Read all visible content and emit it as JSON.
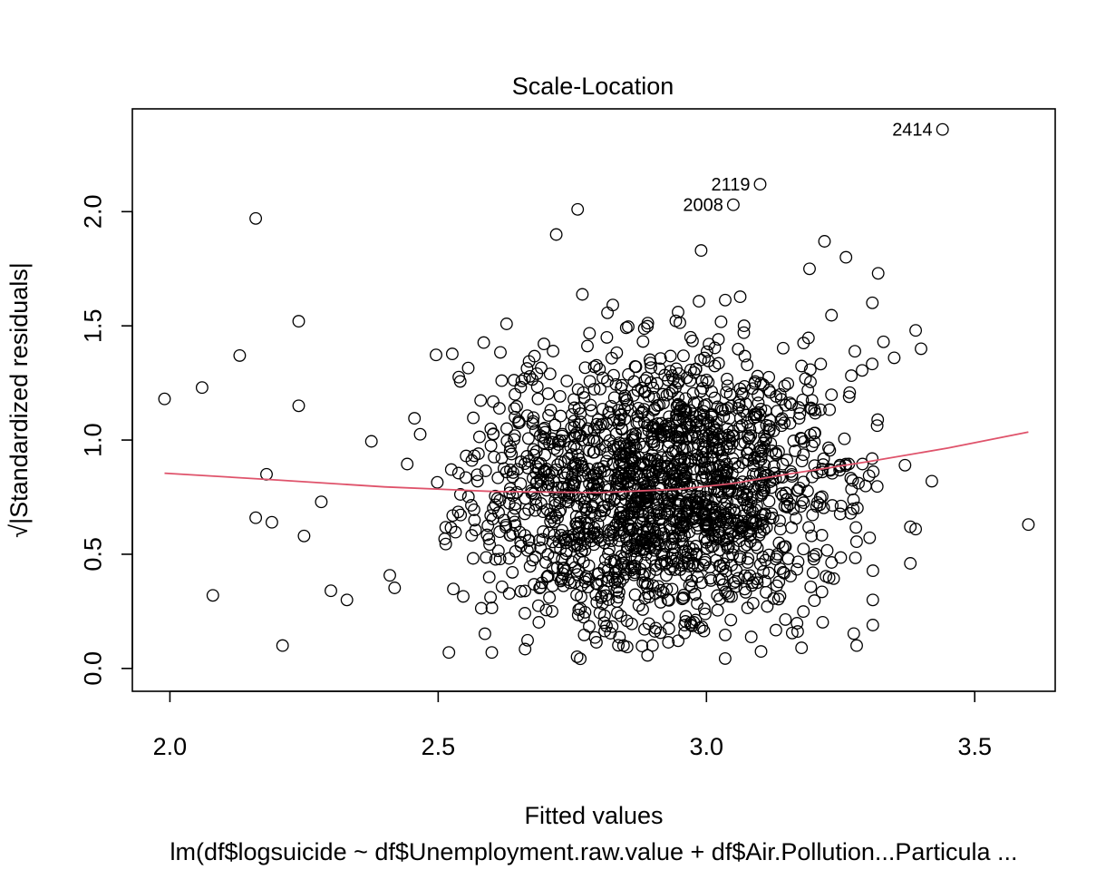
{
  "chart_data": {
    "type": "scatter",
    "title": "Scale-Location",
    "xlabel": "Fitted values",
    "ylabel": "√|Standardized residuals|",
    "subtitle": "lm(df$logsuicide ~ df$Unemployment.raw.value + df$Air.Pollution...Particula ...",
    "xlim": [
      1.93,
      3.65
    ],
    "ylim": [
      -0.1,
      2.45
    ],
    "xticks": [
      "2.0",
      "2.5",
      "3.0",
      "3.5"
    ],
    "yticks": [
      "0.0",
      "0.5",
      "1.0",
      "1.5",
      "2.0"
    ],
    "grid": false,
    "marker": "open-circle",
    "colors": {
      "points": "#000000",
      "smoother": "#DF536B"
    },
    "labeled_points": [
      {
        "label": "2414",
        "x": 3.44,
        "y": 2.36
      },
      {
        "label": "2119",
        "x": 3.1,
        "y": 2.12
      },
      {
        "label": "2008",
        "x": 3.05,
        "y": 2.03
      }
    ],
    "outliers": [
      {
        "x": 1.99,
        "y": 1.18
      },
      {
        "x": 2.06,
        "y": 1.23
      },
      {
        "x": 2.08,
        "y": 0.32
      },
      {
        "x": 2.13,
        "y": 1.37
      },
      {
        "x": 2.16,
        "y": 1.97
      },
      {
        "x": 2.16,
        "y": 0.66
      },
      {
        "x": 2.18,
        "y": 0.85
      },
      {
        "x": 2.19,
        "y": 0.64
      },
      {
        "x": 2.21,
        "y": 0.1
      },
      {
        "x": 2.24,
        "y": 1.52
      },
      {
        "x": 2.24,
        "y": 1.15
      },
      {
        "x": 2.25,
        "y": 0.58
      },
      {
        "x": 2.72,
        "y": 1.9
      },
      {
        "x": 2.76,
        "y": 2.01
      },
      {
        "x": 2.99,
        "y": 1.83
      },
      {
        "x": 3.22,
        "y": 1.87
      },
      {
        "x": 3.26,
        "y": 1.8
      },
      {
        "x": 3.32,
        "y": 1.73
      },
      {
        "x": 3.33,
        "y": 1.43
      },
      {
        "x": 3.35,
        "y": 1.36
      },
      {
        "x": 3.37,
        "y": 0.89
      },
      {
        "x": 3.38,
        "y": 0.62
      },
      {
        "x": 3.39,
        "y": 0.61
      },
      {
        "x": 3.38,
        "y": 0.46
      },
      {
        "x": 3.39,
        "y": 1.48
      },
      {
        "x": 3.4,
        "y": 1.4
      },
      {
        "x": 3.42,
        "y": 0.82
      },
      {
        "x": 3.6,
        "y": 0.63
      },
      {
        "x": 3.28,
        "y": 0.1
      },
      {
        "x": 3.31,
        "y": 0.19
      },
      {
        "x": 3.31,
        "y": 0.3
      },
      {
        "x": 2.3,
        "y": 0.34
      },
      {
        "x": 2.33,
        "y": 0.3
      },
      {
        "x": 2.52,
        "y": 0.07
      },
      {
        "x": 2.6,
        "y": 0.07
      }
    ],
    "smoother": [
      {
        "x": 1.99,
        "y": 0.855
      },
      {
        "x": 2.2,
        "y": 0.825
      },
      {
        "x": 2.4,
        "y": 0.795
      },
      {
        "x": 2.6,
        "y": 0.775
      },
      {
        "x": 2.8,
        "y": 0.77
      },
      {
        "x": 2.95,
        "y": 0.785
      },
      {
        "x": 3.05,
        "y": 0.81
      },
      {
        "x": 3.15,
        "y": 0.85
      },
      {
        "x": 3.3,
        "y": 0.905
      },
      {
        "x": 3.45,
        "y": 0.965
      },
      {
        "x": 3.6,
        "y": 1.035
      }
    ]
  }
}
